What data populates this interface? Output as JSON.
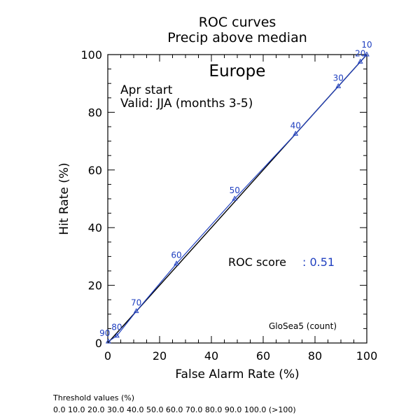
{
  "chart_data": {
    "type": "line",
    "title": "ROC curves",
    "subtitle": "Precip above median",
    "region": "Europe",
    "start": "Apr start",
    "valid": "Valid: JJA (months 3-5)",
    "xlabel": "False Alarm Rate (%)",
    "ylabel": "Hit Rate (%)",
    "xlim": [
      0,
      100
    ],
    "ylim": [
      0,
      100
    ],
    "xticks": [
      0,
      20,
      40,
      60,
      80,
      100
    ],
    "yticks": [
      0,
      20,
      40,
      60,
      80,
      100
    ],
    "grid": false,
    "score_label": "ROC score",
    "score_value": ": 0.51",
    "model_label": "GloSea5 (count)",
    "series": [
      {
        "color": "#2040c0",
        "points": [
          {
            "label": "90",
            "x": 0.2,
            "y": 0.5
          },
          {
            "label": "80",
            "x": 3.5,
            "y": 2.5
          },
          {
            "label": "70",
            "x": 11,
            "y": 11
          },
          {
            "label": "60",
            "x": 26.5,
            "y": 27.5
          },
          {
            "label": "50",
            "x": 49,
            "y": 50
          },
          {
            "label": "40",
            "x": 72.5,
            "y": 72.5
          },
          {
            "label": "30",
            "x": 89,
            "y": 89
          },
          {
            "label": "20",
            "x": 97.5,
            "y": 97.5
          },
          {
            "label": "10",
            "x": 100,
            "y": 100
          }
        ]
      }
    ],
    "diagonal_color": "#000000"
  },
  "footer": {
    "title": "Threshold values (%)",
    "values": "0.0 10.0 20.0 30.0 40.0 50.0 60.0 70.0 80.0 90.0 100.0 (>100)"
  }
}
